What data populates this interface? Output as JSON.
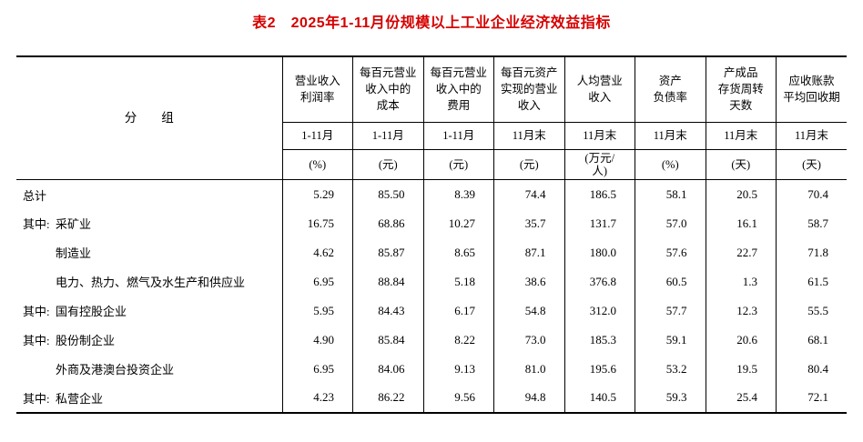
{
  "title": "表2　2025年1-11月份规模以上工业企业经济效益指标",
  "colors": {
    "title_red": "#d60000",
    "border": "#000000",
    "background": "#ffffff"
  },
  "table": {
    "group_header": "分　　组",
    "columns": [
      {
        "name": "营业收入\n利润率",
        "period": "1-11月",
        "unit": "(%)"
      },
      {
        "name": "每百元营业\n收入中的\n成本",
        "period": "1-11月",
        "unit": "(元)"
      },
      {
        "name": "每百元营业\n收入中的\n费用",
        "period": "1-11月",
        "unit": "(元)"
      },
      {
        "name": "每百元资产\n实现的营业\n收入",
        "period": "11月末",
        "unit": "(元)"
      },
      {
        "name": "人均营业\n收入",
        "period": "11月末",
        "unit": "(万元/\n人)"
      },
      {
        "name": "资产\n负债率",
        "period": "11月末",
        "unit": "(%)"
      },
      {
        "name": "产成品\n存货周转\n天数",
        "period": "11月末",
        "unit": "(天)"
      },
      {
        "name": "应收账款\n平均回收期",
        "period": "11月末",
        "unit": "(天)"
      }
    ],
    "rows": [
      {
        "prefix": "",
        "label": "总计",
        "indent": false,
        "values": [
          "5.29",
          "85.50",
          "8.39",
          "74.4",
          "186.5",
          "58.1",
          "20.5",
          "70.4"
        ]
      },
      {
        "prefix": "其中:",
        "label": "采矿业",
        "indent": false,
        "values": [
          "16.75",
          "68.86",
          "10.27",
          "35.7",
          "131.7",
          "57.0",
          "16.1",
          "58.7"
        ]
      },
      {
        "prefix": "",
        "label": "制造业",
        "indent": true,
        "values": [
          "4.62",
          "85.87",
          "8.65",
          "87.1",
          "180.0",
          "57.6",
          "22.7",
          "71.8"
        ]
      },
      {
        "prefix": "",
        "label": "电力、热力、燃气及水生产和供应业",
        "indent": true,
        "values": [
          "6.95",
          "88.84",
          "5.18",
          "38.6",
          "376.8",
          "60.5",
          "1.3",
          "61.5"
        ]
      },
      {
        "prefix": "其中:",
        "label": "国有控股企业",
        "indent": false,
        "values": [
          "5.95",
          "84.43",
          "6.17",
          "54.8",
          "312.0",
          "57.7",
          "12.3",
          "55.5"
        ]
      },
      {
        "prefix": "其中:",
        "label": "股份制企业",
        "indent": false,
        "values": [
          "4.90",
          "85.84",
          "8.22",
          "73.0",
          "185.3",
          "59.1",
          "20.6",
          "68.1"
        ]
      },
      {
        "prefix": "",
        "label": "外商及港澳台投资企业",
        "indent": true,
        "values": [
          "6.95",
          "84.06",
          "9.13",
          "81.0",
          "195.6",
          "53.2",
          "19.5",
          "80.4"
        ]
      },
      {
        "prefix": "其中:",
        "label": "私营企业",
        "indent": false,
        "values": [
          "4.23",
          "86.22",
          "9.56",
          "94.8",
          "140.5",
          "59.3",
          "25.4",
          "72.1"
        ]
      }
    ]
  }
}
